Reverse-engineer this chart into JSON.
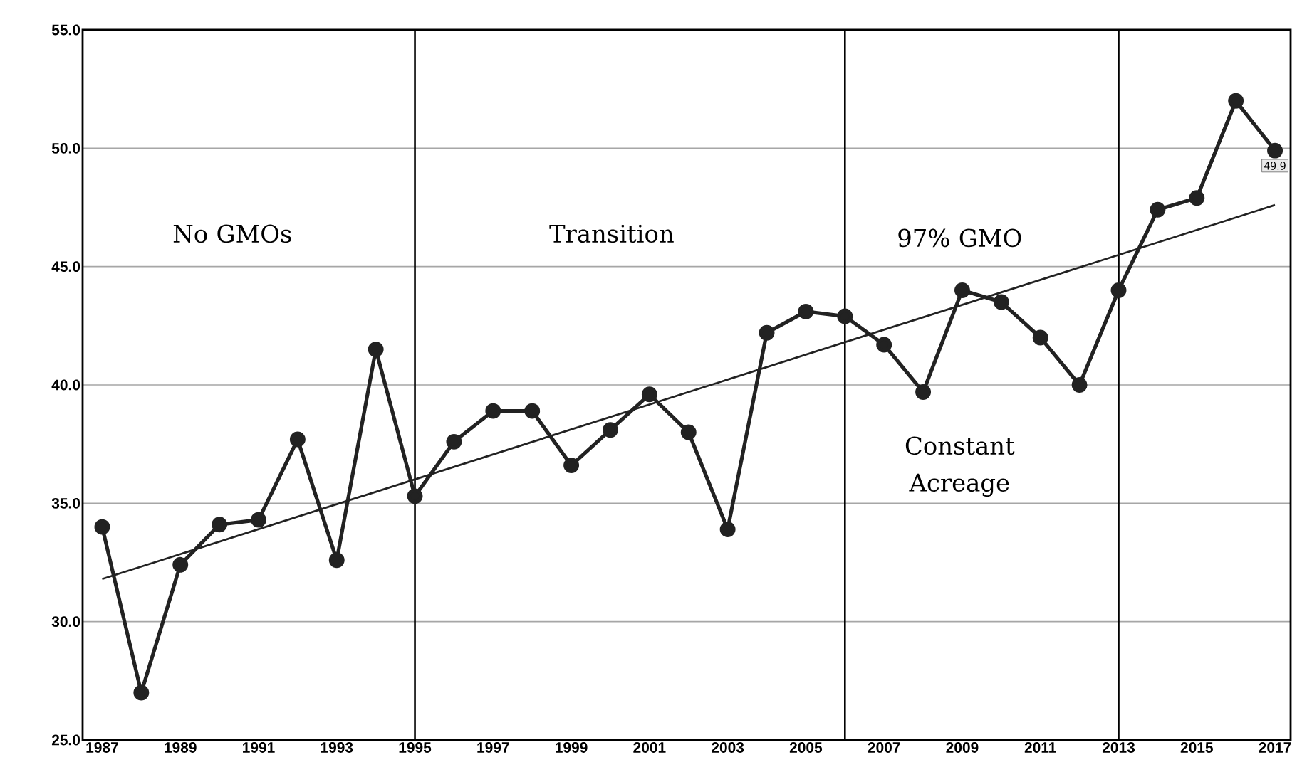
{
  "chart_data": {
    "type": "line",
    "x": [
      1987,
      1988,
      1989,
      1990,
      1991,
      1992,
      1993,
      1994,
      1995,
      1996,
      1997,
      1998,
      1999,
      2000,
      2001,
      2002,
      2003,
      2004,
      2005,
      2006,
      2007,
      2008,
      2009,
      2010,
      2011,
      2012,
      2013,
      2014,
      2015,
      2016,
      2017
    ],
    "series": [
      {
        "color": "#222222",
        "marker": "circle",
        "values": [
          34.0,
          27.0,
          32.4,
          34.1,
          34.3,
          37.7,
          32.6,
          41.5,
          35.3,
          37.6,
          38.9,
          38.9,
          36.6,
          38.1,
          39.6,
          38.0,
          33.9,
          42.2,
          43.1,
          42.9,
          41.7,
          39.7,
          44.0,
          43.5,
          42.0,
          40.0,
          44.0,
          47.4,
          47.9,
          52.0,
          49.9
        ],
        "value_labels": [
          null,
          null,
          null,
          null,
          null,
          null,
          null,
          null,
          null,
          null,
          null,
          null,
          null,
          null,
          null,
          null,
          null,
          null,
          null,
          null,
          null,
          null,
          null,
          null,
          null,
          null,
          null,
          null,
          null,
          null,
          "49.9"
        ]
      },
      {
        "type": "line",
        "color": "#222222",
        "marker": "none",
        "x": [
          1987,
          2017
        ],
        "values": [
          31.8,
          47.6
        ]
      }
    ],
    "xlim": [
      1986.5,
      2017.4
    ],
    "ylim": [
      25,
      55
    ],
    "xticks": [
      1987,
      1989,
      1991,
      1993,
      1995,
      1997,
      1999,
      2001,
      2003,
      2005,
      2007,
      2009,
      2011,
      2013,
      2015,
      2017
    ],
    "yticks": [
      {
        "value": 25,
        "label": "25.0"
      },
      {
        "value": 30,
        "label": "30.0"
      },
      {
        "value": 35,
        "label": "35.0"
      },
      {
        "value": 40,
        "label": "40.0"
      },
      {
        "value": 45,
        "label": "45.0"
      },
      {
        "value": 50,
        "label": "50.0"
      },
      {
        "value": 55,
        "label": "55.0"
      }
    ],
    "grid": "y",
    "ref_lines": [
      {
        "axis": "x",
        "value": 1995,
        "color": "#000000"
      },
      {
        "axis": "x",
        "value": 2006,
        "color": "#000000"
      },
      {
        "axis": "x",
        "value": 2013,
        "color": "#000000"
      }
    ],
    "annotations": [
      "No GMOs",
      "Transition",
      "97% GMO",
      "Constant Acreage"
    ]
  }
}
